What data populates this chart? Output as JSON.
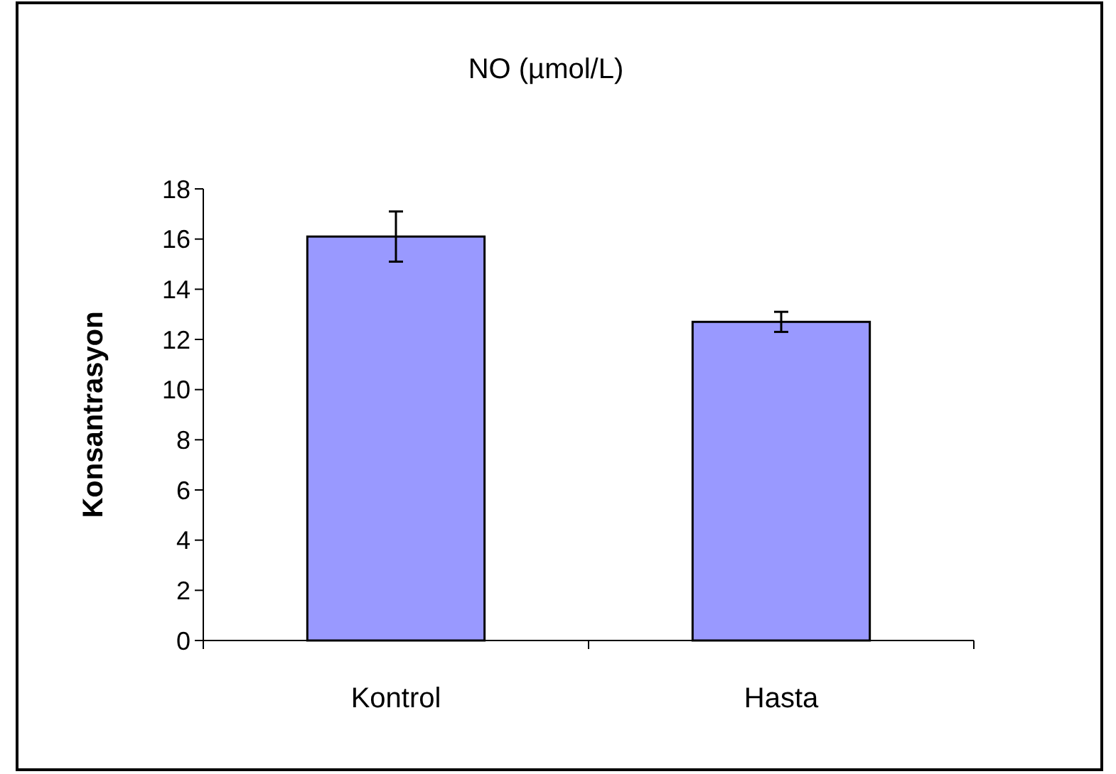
{
  "chart_data": {
    "type": "bar",
    "title": "NO (µmol/L)",
    "ylabel": "Konsantrasyon",
    "categories": [
      "Kontrol",
      "Hasta"
    ],
    "series": [
      {
        "color": "#9999ff",
        "values": [
          16.1,
          12.7
        ],
        "errors": [
          1.0,
          0.4
        ]
      }
    ],
    "ylim": [
      0,
      18
    ],
    "yticks": [
      0,
      2,
      4,
      6,
      8,
      10,
      12,
      14,
      16,
      18
    ],
    "grid": false
  }
}
